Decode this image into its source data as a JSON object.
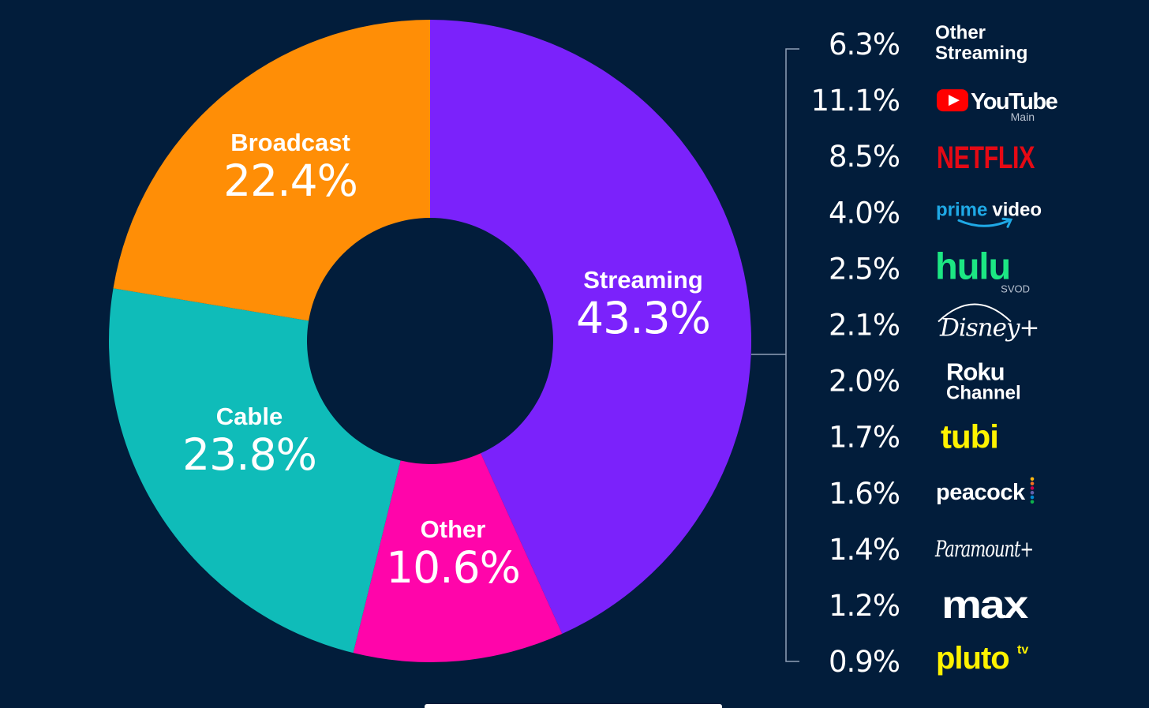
{
  "chart_data": {
    "type": "pie",
    "subtype": "donut",
    "segments": [
      {
        "name": "Streaming",
        "value": 43.3,
        "display": "43.3%",
        "color": "#7b22fb"
      },
      {
        "name": "Other",
        "value": 10.6,
        "display": "10.6%",
        "color": "#ff05aa"
      },
      {
        "name": "Cable",
        "value": 23.8,
        "display": "23.8%",
        "color": "#0fbcb9"
      },
      {
        "name": "Broadcast",
        "value": 22.4,
        "display": "22.4%",
        "color": "#ff8e06"
      }
    ],
    "breakdown": {
      "parent": "Streaming",
      "items": [
        {
          "brand": "Other Streaming",
          "value": 6.3,
          "display": "6.3%"
        },
        {
          "brand": "YouTube",
          "sub": "Main",
          "value": 11.1,
          "display": "11.1%",
          "color": "#ff0000"
        },
        {
          "brand": "NETFLIX",
          "value": 8.5,
          "display": "8.5%",
          "color": "#e50914"
        },
        {
          "brand": "prime video",
          "value": 4.0,
          "display": "4.0%",
          "color": "#1fa9e6"
        },
        {
          "brand": "hulu",
          "sub": "SVOD",
          "value": 2.5,
          "display": "2.5%",
          "color": "#1ce783"
        },
        {
          "brand": "Disney+",
          "value": 2.1,
          "display": "2.1%"
        },
        {
          "brand": "Roku",
          "brand2": "Channel",
          "value": 2.0,
          "display": "2.0%"
        },
        {
          "brand": "tubi",
          "value": 1.7,
          "display": "1.7%",
          "color": "#fff200"
        },
        {
          "brand": "peacock",
          "value": 1.6,
          "display": "1.6%"
        },
        {
          "brand": "Paramount+",
          "value": 1.4,
          "display": "1.4%"
        },
        {
          "brand": "max",
          "value": 1.2,
          "display": "1.2%"
        },
        {
          "brand": "pluto",
          "sup": "tv",
          "value": 0.9,
          "display": "0.9%",
          "color": "#fff200"
        }
      ]
    }
  }
}
